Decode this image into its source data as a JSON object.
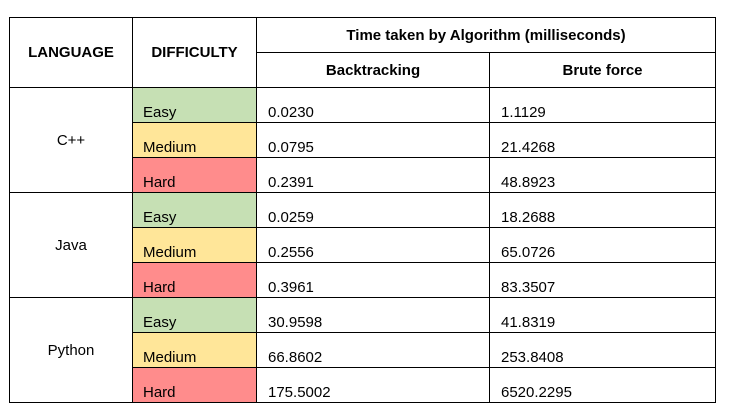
{
  "table": {
    "headers": {
      "language": "LANGUAGE",
      "difficulty": "DIFFICULTY",
      "time_group": "Time taken by Algorithm (milliseconds)",
      "backtracking": "Backtracking",
      "brute_force": "Brute force"
    },
    "groups": [
      {
        "language": "C++",
        "rows": [
          {
            "difficulty": "Easy",
            "backtracking": "0.0230",
            "brute_force": "1.1129"
          },
          {
            "difficulty": "Medium",
            "backtracking": "0.0795",
            "brute_force": "21.4268"
          },
          {
            "difficulty": "Hard",
            "backtracking": "0.2391",
            "brute_force": "48.8923"
          }
        ]
      },
      {
        "language": "Java",
        "rows": [
          {
            "difficulty": "Easy",
            "backtracking": "0.0259",
            "brute_force": "18.2688"
          },
          {
            "difficulty": "Medium",
            "backtracking": "0.2556",
            "brute_force": "65.0726"
          },
          {
            "difficulty": "Hard",
            "backtracking": "0.3961",
            "brute_force": "83.3507"
          }
        ]
      },
      {
        "language": "Python",
        "rows": [
          {
            "difficulty": "Easy",
            "backtracking": "30.9598",
            "brute_force": "41.8319"
          },
          {
            "difficulty": "Medium",
            "backtracking": "66.8602",
            "brute_force": "253.8408"
          },
          {
            "difficulty": "Hard",
            "backtracking": "175.5002",
            "brute_force": "6520.2295"
          }
        ]
      }
    ],
    "colors": {
      "easy": "#c6e0b4",
      "medium": "#ffe699",
      "hard": "#ff8c8c"
    }
  }
}
